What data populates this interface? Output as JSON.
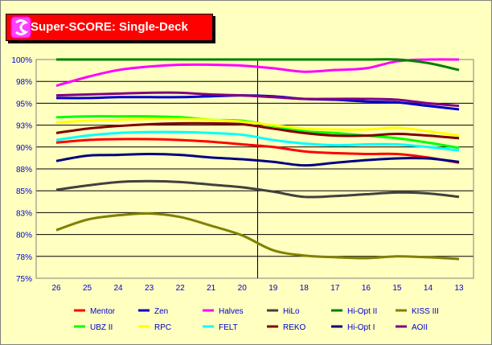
{
  "title": "Super-SCORE: Single-Deck",
  "logo_icon": "spade-card-icon",
  "chart_data": {
    "type": "line",
    "title": "Super-SCORE: Single-Deck",
    "xlabel": "",
    "ylabel": "",
    "categories": [
      "26",
      "25",
      "24",
      "23",
      "22",
      "21",
      "20",
      "19",
      "18",
      "17",
      "16",
      "15",
      "14",
      "13"
    ],
    "ylim": [
      75,
      100
    ],
    "y_ticks": [
      100,
      97.5,
      95,
      92.5,
      90,
      87.5,
      85,
      82.5,
      80,
      77.5,
      75
    ],
    "y_tick_labels": [
      "100%",
      "98%",
      "95%",
      "93%",
      "90%",
      "88%",
      "85%",
      "83%",
      "80%",
      "78%",
      "75%"
    ],
    "grid": "horizontal",
    "marker_line_after_category": "20",
    "legend_position": "bottom",
    "series": [
      {
        "name": "Mentor",
        "color": "#FF0000",
        "values": [
          90.5,
          90.8,
          90.9,
          90.9,
          90.8,
          90.6,
          90.3,
          90.0,
          89.5,
          89.3,
          89.2,
          89.2,
          88.8,
          88.2
        ]
      },
      {
        "name": "Zen",
        "color": "#0000CC",
        "values": [
          95.6,
          95.6,
          95.7,
          95.7,
          95.7,
          95.8,
          95.9,
          95.8,
          95.5,
          95.4,
          95.2,
          95.1,
          94.7,
          94.3
        ]
      },
      {
        "name": "Halves",
        "color": "#FF00FF",
        "values": [
          97.0,
          98.0,
          98.8,
          99.2,
          99.4,
          99.4,
          99.3,
          99.0,
          98.6,
          98.8,
          99.0,
          99.8,
          100.0,
          100.0
        ]
      },
      {
        "name": "HiLo",
        "color": "#404040",
        "values": [
          85.1,
          85.6,
          86.0,
          86.1,
          86.0,
          85.7,
          85.4,
          84.9,
          84.3,
          84.4,
          84.6,
          84.8,
          84.7,
          84.3
        ]
      },
      {
        "name": "Hi-Opt II",
        "color": "#008000",
        "values": [
          100.0,
          100.0,
          100.0,
          100.0,
          100.0,
          100.0,
          100.0,
          100.0,
          100.0,
          100.0,
          100.0,
          100.0,
          99.6,
          98.8
        ]
      },
      {
        "name": "KISS III",
        "color": "#808000",
        "values": [
          80.5,
          81.7,
          82.2,
          82.4,
          82.0,
          81.0,
          79.9,
          78.2,
          77.6,
          77.4,
          77.3,
          77.5,
          77.4,
          77.2
        ]
      },
      {
        "name": "UBZ II",
        "color": "#00FF00",
        "values": [
          93.4,
          93.5,
          93.5,
          93.5,
          93.4,
          93.1,
          93.0,
          92.4,
          91.8,
          91.6,
          91.3,
          91.0,
          90.5,
          89.9
        ]
      },
      {
        "name": "RPC",
        "color": "#FFFF00",
        "values": [
          92.8,
          93.0,
          93.1,
          93.2,
          93.2,
          93.1,
          92.9,
          92.5,
          92.1,
          92.0,
          92.0,
          92.2,
          91.8,
          91.3
        ]
      },
      {
        "name": "FELT",
        "color": "#00FFFF",
        "values": [
          90.8,
          91.3,
          91.6,
          91.7,
          91.7,
          91.6,
          91.4,
          90.8,
          90.4,
          90.2,
          90.3,
          90.3,
          90.0,
          89.6
        ]
      },
      {
        "name": "REKO",
        "color": "#800000",
        "values": [
          91.6,
          92.1,
          92.4,
          92.6,
          92.7,
          92.7,
          92.6,
          92.1,
          91.6,
          91.3,
          91.3,
          91.5,
          91.3,
          91.0
        ]
      },
      {
        "name": "Hi-Opt I",
        "color": "#000080",
        "values": [
          88.4,
          89.0,
          89.1,
          89.2,
          89.1,
          88.8,
          88.6,
          88.3,
          87.9,
          88.2,
          88.5,
          88.7,
          88.7,
          88.3
        ]
      },
      {
        "name": "AOII",
        "color": "#800080",
        "values": [
          95.9,
          96.0,
          96.1,
          96.2,
          96.2,
          96.0,
          95.9,
          95.7,
          95.5,
          95.5,
          95.5,
          95.4,
          95.0,
          94.7
        ]
      }
    ]
  }
}
